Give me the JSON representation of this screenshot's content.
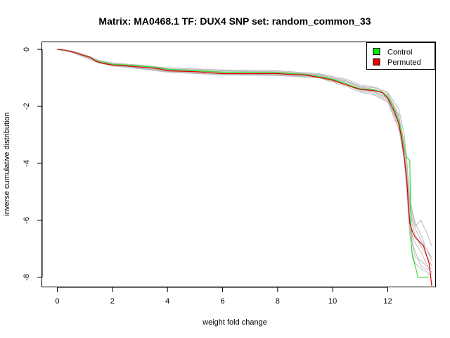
{
  "chart_data": {
    "type": "line",
    "title": "Matrix: MA0468.1 TF: DUX4 SNP set: random_common_33",
    "xlabel": "weight fold change",
    "ylabel": "inverse cumulative distribution",
    "xlim": [
      -0.55,
      13.75
    ],
    "ylim": [
      -8.35,
      0.25
    ],
    "x_ticks": [
      0,
      2,
      4,
      6,
      8,
      10,
      12
    ],
    "y_ticks": [
      0,
      -2,
      -4,
      -6,
      -8
    ],
    "grid": false,
    "legend_position": "top-right",
    "legend": [
      {
        "name": "Control",
        "color": "#00ee00"
      },
      {
        "name": "Permuted",
        "color": "#ee0000"
      }
    ],
    "series": [
      {
        "name": "Control",
        "color": "#33dd33",
        "x": [
          0,
          0.3,
          0.6,
          0.9,
          1.2,
          1.4,
          1.7,
          2.0,
          2.5,
          3.0,
          3.5,
          3.8,
          4.0,
          5.0,
          6.0,
          7.0,
          8.0,
          8.5,
          9.0,
          9.5,
          10.0,
          10.5,
          10.8,
          11.0,
          11.5,
          11.8,
          12.0,
          12.2,
          12.4,
          12.5,
          12.6,
          12.7,
          12.8,
          12.85,
          12.9,
          13.0,
          13.1,
          13.5
        ],
        "values": [
          0,
          -0.03,
          -0.1,
          -0.2,
          -0.28,
          -0.4,
          -0.47,
          -0.52,
          -0.55,
          -0.58,
          -0.62,
          -0.66,
          -0.7,
          -0.75,
          -0.8,
          -0.8,
          -0.82,
          -0.85,
          -0.88,
          -0.95,
          -1.05,
          -1.2,
          -1.32,
          -1.38,
          -1.42,
          -1.5,
          -1.68,
          -2.0,
          -2.5,
          -2.9,
          -3.5,
          -3.8,
          -3.9,
          -6.8,
          -7.3,
          -7.6,
          -8.0,
          -8.0
        ]
      },
      {
        "name": "Permuted",
        "color": "#dd0000",
        "x": [
          0,
          0.3,
          0.6,
          0.9,
          1.2,
          1.4,
          1.7,
          2.0,
          2.5,
          3.0,
          3.5,
          3.8,
          4.0,
          5.0,
          6.0,
          7.0,
          8.0,
          8.5,
          9.0,
          9.5,
          10.0,
          10.5,
          10.8,
          11.0,
          11.5,
          11.8,
          12.0,
          12.2,
          12.4,
          12.5,
          12.6,
          12.7,
          12.75,
          12.8,
          12.9,
          13.0,
          13.2,
          13.3,
          13.4,
          13.5,
          13.6
        ],
        "values": [
          0,
          -0.03,
          -0.1,
          -0.2,
          -0.28,
          -0.42,
          -0.5,
          -0.55,
          -0.58,
          -0.62,
          -0.66,
          -0.7,
          -0.75,
          -0.78,
          -0.85,
          -0.85,
          -0.85,
          -0.88,
          -0.9,
          -0.98,
          -1.08,
          -1.25,
          -1.35,
          -1.4,
          -1.45,
          -1.52,
          -1.72,
          -2.1,
          -2.6,
          -3.1,
          -3.8,
          -4.7,
          -5.5,
          -6.1,
          -6.4,
          -6.6,
          -6.8,
          -6.9,
          -7.2,
          -7.5,
          -8.3
        ]
      }
    ],
    "permutation_bands": [
      {
        "name": "",
        "color": "#bbbbbb",
        "x": [
          0,
          0.5,
          1.0,
          1.5,
          2.0,
          3.0,
          4.0,
          6.0,
          8.0,
          9.5,
          10.5,
          11.0,
          11.5,
          12.0,
          12.4,
          12.6,
          12.7,
          12.8,
          12.9,
          13.0,
          13.2,
          13.4,
          13.6
        ],
        "values": [
          0,
          -0.06,
          -0.2,
          -0.4,
          -0.5,
          -0.58,
          -0.68,
          -0.75,
          -0.78,
          -0.88,
          -1.1,
          -1.3,
          -1.35,
          -1.55,
          -2.3,
          -3.3,
          -4.3,
          -5.4,
          -5.8,
          -6.2,
          -6.0,
          -6.4,
          -6.9
        ]
      },
      {
        "name": "",
        "color": "#bbbbbb",
        "x": [
          0,
          0.5,
          1.0,
          1.5,
          2.0,
          3.0,
          4.0,
          6.0,
          8.0,
          9.5,
          10.5,
          11.0,
          11.5,
          12.0,
          12.4,
          12.6,
          12.7,
          12.8,
          12.9,
          13.0,
          13.2,
          13.4,
          13.6
        ],
        "values": [
          0,
          -0.1,
          -0.28,
          -0.48,
          -0.58,
          -0.68,
          -0.8,
          -0.9,
          -0.92,
          -1.0,
          -1.3,
          -1.5,
          -1.6,
          -1.85,
          -2.8,
          -3.8,
          -4.9,
          -6.3,
          -6.8,
          -7.1,
          -7.6,
          -7.7,
          -7.8
        ]
      },
      {
        "name": "",
        "color": "#bbbbbb",
        "x": [
          0,
          0.5,
          1.0,
          1.5,
          2.0,
          3.0,
          4.0,
          6.0,
          8.0,
          9.5,
          10.5,
          11.0,
          11.5,
          12.0,
          12.4,
          12.6,
          12.7,
          12.8,
          12.9,
          13.0,
          13.2,
          13.4,
          13.6
        ],
        "values": [
          0,
          -0.05,
          -0.18,
          -0.38,
          -0.48,
          -0.55,
          -0.65,
          -0.72,
          -0.75,
          -0.85,
          -1.05,
          -1.25,
          -1.32,
          -1.5,
          -2.1,
          -3.0,
          -4.0,
          -5.2,
          -5.7,
          -6.1,
          -6.5,
          -7.0,
          -7.4
        ]
      },
      {
        "name": "",
        "color": "#bbbbbb",
        "x": [
          0,
          0.5,
          1.0,
          1.5,
          2.0,
          3.0,
          4.0,
          6.0,
          8.0,
          9.5,
          10.5,
          11.0,
          11.5,
          12.0,
          12.4,
          12.6,
          12.7,
          12.8,
          12.9,
          13.0,
          13.2,
          13.4,
          13.6
        ],
        "values": [
          0,
          -0.08,
          -0.25,
          -0.45,
          -0.55,
          -0.65,
          -0.76,
          -0.86,
          -0.88,
          -0.96,
          -1.22,
          -1.42,
          -1.5,
          -1.75,
          -2.6,
          -3.6,
          -4.6,
          -5.9,
          -6.6,
          -6.8,
          -7.1,
          -7.5,
          -7.9
        ]
      },
      {
        "name": "",
        "color": "#bbbbbb",
        "x": [
          0,
          0.5,
          1.0,
          1.5,
          2.0,
          3.0,
          4.0,
          6.0,
          8.0,
          9.5,
          10.5,
          11.0,
          11.5,
          12.0,
          12.4,
          12.6,
          12.7,
          12.8,
          12.9,
          13.0,
          13.2,
          13.4,
          13.6
        ],
        "values": [
          0,
          -0.07,
          -0.22,
          -0.42,
          -0.52,
          -0.6,
          -0.72,
          -0.8,
          -0.82,
          -0.92,
          -1.15,
          -1.35,
          -1.42,
          -1.62,
          -2.4,
          -3.4,
          -4.5,
          -5.6,
          -6.2,
          -6.5,
          -6.9,
          -7.2,
          -7.6
        ]
      },
      {
        "name": "",
        "color": "#bbbbbb",
        "x": [
          0,
          0.5,
          1.0,
          1.5,
          2.0,
          3.0,
          4.0,
          6.0,
          8.0,
          9.5,
          10.5,
          11.0,
          11.5,
          12.0,
          12.4,
          12.6,
          12.7,
          12.8,
          12.9,
          13.0,
          13.2,
          13.4,
          13.6
        ],
        "values": [
          0,
          -0.09,
          -0.26,
          -0.46,
          -0.56,
          -0.66,
          -0.78,
          -0.88,
          -0.9,
          -0.98,
          -1.25,
          -1.45,
          -1.55,
          -1.8,
          -2.7,
          -3.9,
          -5.1,
          -6.5,
          -7.2,
          -7.5,
          -7.7,
          -7.8,
          -8.0
        ]
      },
      {
        "name": "",
        "color": "#bbbbbb",
        "x": [
          0,
          0.5,
          1.0,
          1.5,
          2.0,
          3.0,
          4.0,
          6.0,
          8.0,
          9.5,
          10.5,
          11.0,
          11.5,
          12.0,
          12.4,
          12.6,
          12.7,
          12.8,
          12.9,
          13.0,
          13.2,
          13.4,
          13.6
        ],
        "values": [
          0,
          -0.06,
          -0.21,
          -0.41,
          -0.51,
          -0.59,
          -0.7,
          -0.78,
          -0.8,
          -0.9,
          -1.12,
          -1.32,
          -1.4,
          -1.6,
          -2.35,
          -3.3,
          -4.3,
          -5.5,
          -6.0,
          -6.3,
          -6.7,
          -7.0,
          -7.3
        ]
      },
      {
        "name": "",
        "color": "#bbbbbb",
        "x": [
          0,
          0.5,
          1.0,
          1.5,
          2.0,
          3.0,
          4.0,
          6.0,
          8.0,
          9.5,
          10.5,
          11.0,
          11.5,
          12.0,
          12.4,
          12.6,
          12.7,
          12.8,
          12.9,
          13.0,
          13.2,
          13.4,
          13.6
        ],
        "values": [
          0,
          -0.08,
          -0.24,
          -0.44,
          -0.54,
          -0.63,
          -0.75,
          -0.84,
          -0.86,
          -0.95,
          -1.2,
          -1.4,
          -1.48,
          -1.7,
          -2.55,
          -3.55,
          -4.7,
          -6.0,
          -6.9,
          -7.3,
          -7.4,
          -7.6,
          -7.7
        ]
      }
    ]
  }
}
